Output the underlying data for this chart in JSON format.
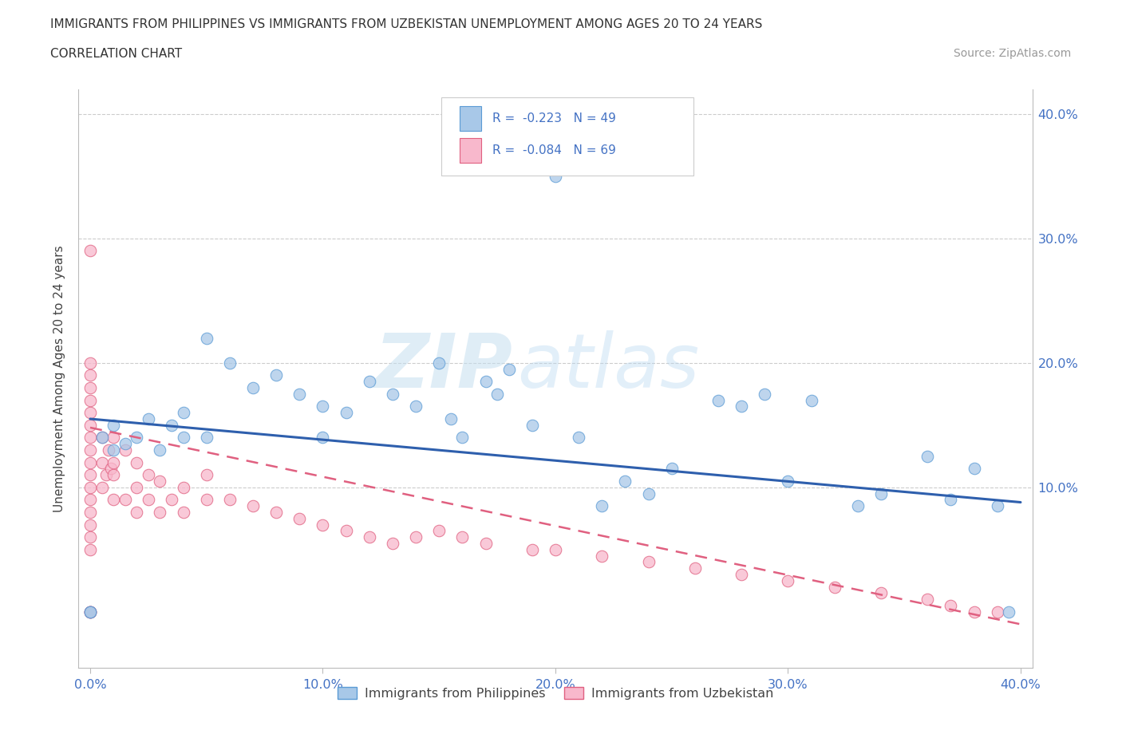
{
  "title_line1": "IMMIGRANTS FROM PHILIPPINES VS IMMIGRANTS FROM UZBEKISTAN UNEMPLOYMENT AMONG AGES 20 TO 24 YEARS",
  "title_line2": "CORRELATION CHART",
  "source_text": "Source: ZipAtlas.com",
  "ylabel": "Unemployment Among Ages 20 to 24 years",
  "watermark_ZIP": "ZIP",
  "watermark_atlas": "atlas",
  "legend_label1": "Immigrants from Philippines",
  "legend_label2": "Immigrants from Uzbekistan",
  "R1": -0.223,
  "N1": 49,
  "R2": -0.084,
  "N2": 69,
  "color_philippines_fill": "#a8c8e8",
  "color_philippines_edge": "#5b9bd5",
  "color_uzbekistan_fill": "#f8b8cc",
  "color_uzbekistan_edge": "#e06080",
  "color_line_philippines": "#2e5fad",
  "color_line_uzbekistan": "#e06080",
  "xlim": [
    -0.005,
    0.405
  ],
  "ylim": [
    -0.045,
    0.42
  ],
  "xticks": [
    0.0,
    0.1,
    0.2,
    0.3,
    0.4
  ],
  "yticks": [
    0.1,
    0.2,
    0.3,
    0.4
  ],
  "xtick_labels": [
    "0.0%",
    "10.0%",
    "20.0%",
    "30.0%",
    "40.0%"
  ],
  "ytick_labels": [
    "10.0%",
    "20.0%",
    "30.0%",
    "40.0%"
  ],
  "philippines_x": [
    0.0,
    0.0,
    0.005,
    0.01,
    0.01,
    0.015,
    0.02,
    0.025,
    0.03,
    0.035,
    0.04,
    0.04,
    0.05,
    0.05,
    0.06,
    0.07,
    0.08,
    0.09,
    0.1,
    0.1,
    0.11,
    0.12,
    0.13,
    0.14,
    0.15,
    0.155,
    0.16,
    0.17,
    0.175,
    0.18,
    0.19,
    0.2,
    0.21,
    0.22,
    0.23,
    0.24,
    0.25,
    0.27,
    0.28,
    0.29,
    0.3,
    0.31,
    0.33,
    0.34,
    0.36,
    0.37,
    0.38,
    0.39,
    0.395
  ],
  "philippines_y": [
    0.0,
    0.0,
    0.14,
    0.13,
    0.15,
    0.135,
    0.14,
    0.155,
    0.13,
    0.15,
    0.14,
    0.16,
    0.22,
    0.14,
    0.2,
    0.18,
    0.19,
    0.175,
    0.165,
    0.14,
    0.16,
    0.185,
    0.175,
    0.165,
    0.2,
    0.155,
    0.14,
    0.185,
    0.175,
    0.195,
    0.15,
    0.35,
    0.14,
    0.085,
    0.105,
    0.095,
    0.115,
    0.17,
    0.165,
    0.175,
    0.105,
    0.17,
    0.085,
    0.095,
    0.125,
    0.09,
    0.115,
    0.085,
    0.0
  ],
  "uzbekistan_x": [
    0.0,
    0.0,
    0.0,
    0.0,
    0.0,
    0.0,
    0.0,
    0.0,
    0.0,
    0.0,
    0.0,
    0.0,
    0.0,
    0.0,
    0.0,
    0.0,
    0.0,
    0.0,
    0.0,
    0.0,
    0.005,
    0.005,
    0.005,
    0.007,
    0.008,
    0.009,
    0.01,
    0.01,
    0.01,
    0.01,
    0.015,
    0.015,
    0.02,
    0.02,
    0.02,
    0.025,
    0.025,
    0.03,
    0.03,
    0.035,
    0.04,
    0.04,
    0.05,
    0.05,
    0.06,
    0.07,
    0.08,
    0.09,
    0.1,
    0.11,
    0.12,
    0.13,
    0.14,
    0.15,
    0.16,
    0.17,
    0.19,
    0.2,
    0.22,
    0.24,
    0.26,
    0.28,
    0.3,
    0.32,
    0.34,
    0.36,
    0.37,
    0.38,
    0.39
  ],
  "uzbekistan_y": [
    0.0,
    0.0,
    0.0,
    0.05,
    0.06,
    0.07,
    0.08,
    0.09,
    0.1,
    0.11,
    0.12,
    0.13,
    0.14,
    0.15,
    0.16,
    0.17,
    0.18,
    0.19,
    0.2,
    0.29,
    0.1,
    0.12,
    0.14,
    0.11,
    0.13,
    0.115,
    0.09,
    0.11,
    0.12,
    0.14,
    0.09,
    0.13,
    0.08,
    0.1,
    0.12,
    0.09,
    0.11,
    0.08,
    0.105,
    0.09,
    0.08,
    0.1,
    0.09,
    0.11,
    0.09,
    0.085,
    0.08,
    0.075,
    0.07,
    0.065,
    0.06,
    0.055,
    0.06,
    0.065,
    0.06,
    0.055,
    0.05,
    0.05,
    0.045,
    0.04,
    0.035,
    0.03,
    0.025,
    0.02,
    0.015,
    0.01,
    0.005,
    0.0,
    0.0
  ],
  "phil_line_x0": 0.0,
  "phil_line_y0": 0.155,
  "phil_line_x1": 0.4,
  "phil_line_y1": 0.088,
  "uzb_line_x0": 0.0,
  "uzb_line_y0": 0.148,
  "uzb_line_x1": 0.4,
  "uzb_line_y1": -0.01,
  "title_fontsize": 11,
  "subtitle_fontsize": 11,
  "axis_label_fontsize": 11,
  "tick_fontsize": 11.5,
  "source_fontsize": 10
}
